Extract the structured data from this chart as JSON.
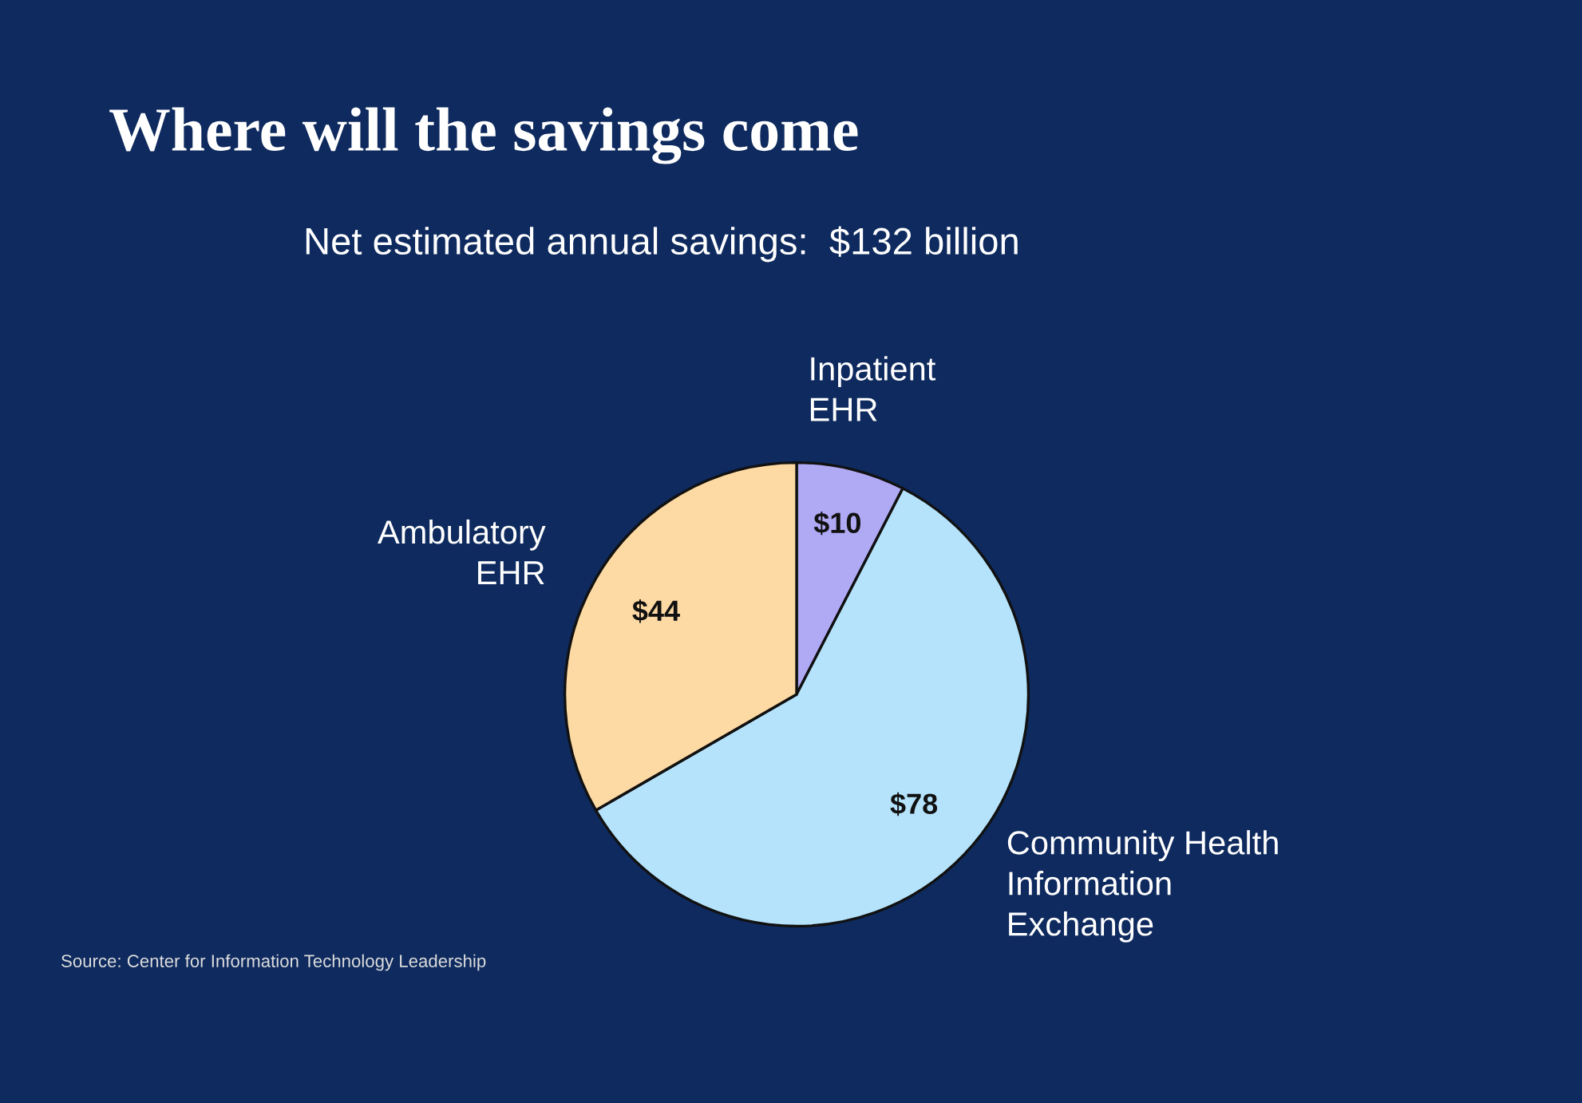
{
  "chart_data": {
    "type": "pie",
    "title": "Where will the savings come",
    "subtitle": "Net estimated annual savings:  $132 billion",
    "categories": [
      "Inpatient\nEHR",
      "Community Health\nInformation\nExchange",
      "Ambulatory\nEHR"
    ],
    "values": [
      10,
      78,
      44
    ],
    "value_labels": [
      "$10",
      "$78",
      "$44"
    ],
    "colors": [
      "#b0aaf5",
      "#b5e3fb",
      "#fdd9a3"
    ],
    "annotations": [
      "Source: Center for Information Technology Leadership"
    ]
  }
}
